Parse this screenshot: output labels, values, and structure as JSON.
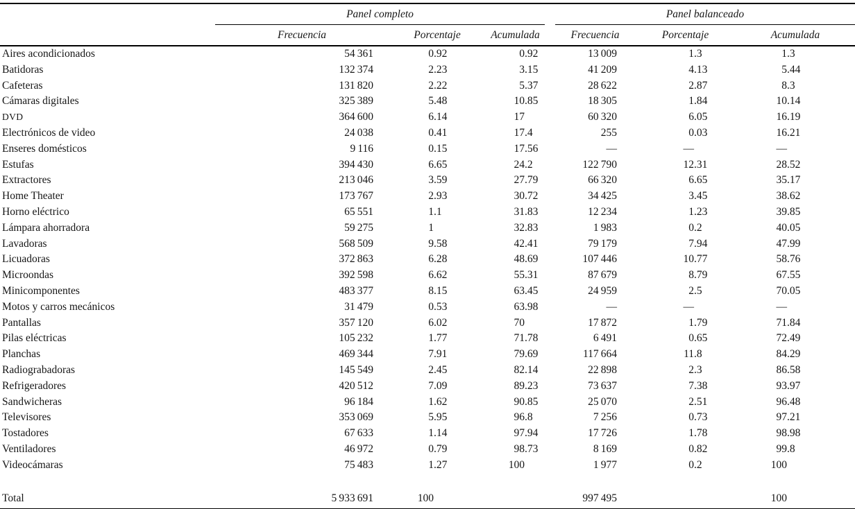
{
  "table": {
    "column_groups": [
      {
        "label": "Panel completo"
      },
      {
        "label": "Panel balanceado"
      }
    ],
    "sub_columns": [
      "Frecuencia",
      "Porcentaje",
      "Acumulada"
    ],
    "missing_marker": "—",
    "colors": {
      "text": "#151515",
      "rule": "#000000",
      "background": "#ffffff"
    },
    "rows": [
      {
        "label": "Aires acondicionados",
        "full": {
          "frecuencia": "54 361",
          "porcentaje": "0.92",
          "acumulada": "0.92"
        },
        "balanced": {
          "frecuencia": "13 009",
          "porcentaje": "1.3",
          "acumulada": "1.3"
        }
      },
      {
        "label": "Batidoras",
        "full": {
          "frecuencia": "132 374",
          "porcentaje": "2.23",
          "acumulada": "3.15"
        },
        "balanced": {
          "frecuencia": "41 209",
          "porcentaje": "4.13",
          "acumulada": "5.44"
        }
      },
      {
        "label": "Cafeteras",
        "full": {
          "frecuencia": "131 820",
          "porcentaje": "2.22",
          "acumulada": "5.37"
        },
        "balanced": {
          "frecuencia": "28 622",
          "porcentaje": "2.87",
          "acumulada": "8.3"
        }
      },
      {
        "label": "Cámaras digitales",
        "full": {
          "frecuencia": "325 389",
          "porcentaje": "5.48",
          "acumulada": "10.85"
        },
        "balanced": {
          "frecuencia": "18 305",
          "porcentaje": "1.84",
          "acumulada": "10.14"
        }
      },
      {
        "label": "DVD",
        "smallcaps": true,
        "full": {
          "frecuencia": "364 600",
          "porcentaje": "6.14",
          "acumulada": "17"
        },
        "balanced": {
          "frecuencia": "60 320",
          "porcentaje": "6.05",
          "acumulada": "16.19"
        }
      },
      {
        "label": "Electrónicos de video",
        "full": {
          "frecuencia": "24 038",
          "porcentaje": "0.41",
          "acumulada": "17.4"
        },
        "balanced": {
          "frecuencia": "255",
          "porcentaje": "0.03",
          "acumulada": "16.21"
        }
      },
      {
        "label": "Enseres domésticos",
        "full": {
          "frecuencia": "9 116",
          "porcentaje": "0.15",
          "acumulada": "17.56"
        },
        "balanced": {
          "frecuencia": "—",
          "porcentaje": "—",
          "acumulada": "—"
        }
      },
      {
        "label": "Estufas",
        "full": {
          "frecuencia": "394 430",
          "porcentaje": "6.65",
          "acumulada": "24.2"
        },
        "balanced": {
          "frecuencia": "122 790",
          "porcentaje": "12.31",
          "acumulada": "28.52"
        }
      },
      {
        "label": "Extractores",
        "full": {
          "frecuencia": "213 046",
          "porcentaje": "3.59",
          "acumulada": "27.79"
        },
        "balanced": {
          "frecuencia": "66 320",
          "porcentaje": "6.65",
          "acumulada": "35.17"
        }
      },
      {
        "label": "Home Theater",
        "full": {
          "frecuencia": "173 767",
          "porcentaje": "2.93",
          "acumulada": "30.72"
        },
        "balanced": {
          "frecuencia": "34 425",
          "porcentaje": "3.45",
          "acumulada": "38.62"
        }
      },
      {
        "label": "Horno eléctrico",
        "full": {
          "frecuencia": "65 551",
          "porcentaje": "1.1",
          "acumulada": "31.83"
        },
        "balanced": {
          "frecuencia": "12 234",
          "porcentaje": "1.23",
          "acumulada": "39.85"
        }
      },
      {
        "label": "Lámpara ahorradora",
        "full": {
          "frecuencia": "59 275",
          "porcentaje": "1",
          "acumulada": "32.83"
        },
        "balanced": {
          "frecuencia": "1 983",
          "porcentaje": "0.2",
          "acumulada": "40.05"
        }
      },
      {
        "label": "Lavadoras",
        "full": {
          "frecuencia": "568 509",
          "porcentaje": "9.58",
          "acumulada": "42.41"
        },
        "balanced": {
          "frecuencia": "79 179",
          "porcentaje": "7.94",
          "acumulada": "47.99"
        }
      },
      {
        "label": "Licuadoras",
        "full": {
          "frecuencia": "372 863",
          "porcentaje": "6.28",
          "acumulada": "48.69"
        },
        "balanced": {
          "frecuencia": "107 446",
          "porcentaje": "10.77",
          "acumulada": "58.76"
        }
      },
      {
        "label": "Microondas",
        "full": {
          "frecuencia": "392 598",
          "porcentaje": "6.62",
          "acumulada": "55.31"
        },
        "balanced": {
          "frecuencia": "87 679",
          "porcentaje": "8.79",
          "acumulada": "67.55"
        }
      },
      {
        "label": "Minicomponentes",
        "full": {
          "frecuencia": "483 377",
          "porcentaje": "8.15",
          "acumulada": "63.45"
        },
        "balanced": {
          "frecuencia": "24 959",
          "porcentaje": "2.5",
          "acumulada": "70.05"
        }
      },
      {
        "label": "Motos y carros mecánicos",
        "full": {
          "frecuencia": "31 479",
          "porcentaje": "0.53",
          "acumulada": "63.98"
        },
        "balanced": {
          "frecuencia": "—",
          "porcentaje": "—",
          "acumulada": "—"
        }
      },
      {
        "label": "Pantallas",
        "full": {
          "frecuencia": "357 120",
          "porcentaje": "6.02",
          "acumulada": "70"
        },
        "balanced": {
          "frecuencia": "17 872",
          "porcentaje": "1.79",
          "acumulada": "71.84"
        }
      },
      {
        "label": "Pilas eléctricas",
        "full": {
          "frecuencia": "105 232",
          "porcentaje": "1.77",
          "acumulada": "71.78"
        },
        "balanced": {
          "frecuencia": "6 491",
          "porcentaje": "0.65",
          "acumulada": "72.49"
        }
      },
      {
        "label": "Planchas",
        "full": {
          "frecuencia": "469 344",
          "porcentaje": "7.91",
          "acumulada": "79.69"
        },
        "balanced": {
          "frecuencia": "117 664",
          "porcentaje": "11.8",
          "acumulada": "84.29"
        }
      },
      {
        "label": "Radiograbadoras",
        "full": {
          "frecuencia": "145 549",
          "porcentaje": "2.45",
          "acumulada": "82.14"
        },
        "balanced": {
          "frecuencia": "22 898",
          "porcentaje": "2.3",
          "acumulada": "86.58"
        }
      },
      {
        "label": "Refrigeradores",
        "full": {
          "frecuencia": "420 512",
          "porcentaje": "7.09",
          "acumulada": "89.23"
        },
        "balanced": {
          "frecuencia": "73 637",
          "porcentaje": "7.38",
          "acumulada": "93.97"
        }
      },
      {
        "label": "Sandwicheras",
        "full": {
          "frecuencia": "96 184",
          "porcentaje": "1.62",
          "acumulada": "90.85"
        },
        "balanced": {
          "frecuencia": "25 070",
          "porcentaje": "2.51",
          "acumulada": "96.48"
        }
      },
      {
        "label": "Televisores",
        "full": {
          "frecuencia": "353 069",
          "porcentaje": "5.95",
          "acumulada": "96.8"
        },
        "balanced": {
          "frecuencia": "7 256",
          "porcentaje": "0.73",
          "acumulada": "97.21"
        }
      },
      {
        "label": "Tostadores",
        "full": {
          "frecuencia": "67 633",
          "porcentaje": "1.14",
          "acumulada": "97.94"
        },
        "balanced": {
          "frecuencia": "17 726",
          "porcentaje": "1.78",
          "acumulada": "98.98"
        }
      },
      {
        "label": "Ventiladores",
        "full": {
          "frecuencia": "46 972",
          "porcentaje": "0.79",
          "acumulada": "98.73"
        },
        "balanced": {
          "frecuencia": "8 169",
          "porcentaje": "0.82",
          "acumulada": "99.8"
        }
      },
      {
        "label": "Videocámaras",
        "full": {
          "frecuencia": "75 483",
          "porcentaje": "1.27",
          "acumulada": "100"
        },
        "balanced": {
          "frecuencia": "1 977",
          "porcentaje": "0.2",
          "acumulada": "100"
        }
      }
    ],
    "total_row": {
      "label": "Total",
      "full": {
        "frecuencia": "5 933 691",
        "porcentaje": "100",
        "acumulada": ""
      },
      "balanced": {
        "frecuencia": "997 495",
        "porcentaje": "",
        "acumulada": "100"
      }
    }
  }
}
